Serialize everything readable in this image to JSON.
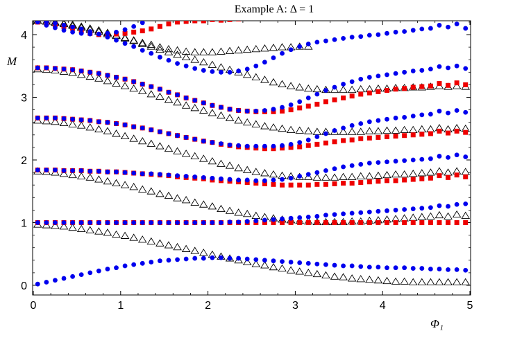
{
  "chart_data": {
    "type": "scatter",
    "title": "Example A: Δ = 1",
    "xlabel": "Φ₁",
    "ylabel": "M",
    "xlim": [
      0,
      5.05
    ],
    "ylim": [
      -0.18,
      4.22
    ],
    "xticks": [
      0,
      1,
      2,
      3,
      4,
      5
    ],
    "yticks": [
      0,
      1,
      2,
      3,
      4
    ],
    "grid": false,
    "legend": "none",
    "x": {
      "start": 0.05,
      "stop": 5.0,
      "step": 0.1
    },
    "series": [
      {
        "marker": "circle",
        "color": "#0000ee",
        "curves": [
          [
            0.02,
            0.05,
            0.08,
            0.11,
            0.14,
            0.17,
            0.2,
            0.23,
            0.26,
            0.28,
            0.31,
            0.33,
            0.35,
            0.37,
            0.39,
            0.4,
            0.41,
            0.42,
            0.43,
            0.43,
            0.44,
            0.44,
            0.43,
            0.43,
            0.42,
            0.41,
            0.4,
            0.39,
            0.38,
            0.37,
            0.36,
            0.35,
            0.34,
            0.33,
            0.32,
            0.31,
            0.31,
            0.3,
            0.29,
            0.29,
            0.28,
            0.28,
            0.28,
            0.27,
            0.27,
            0.26,
            0.26,
            0.25,
            0.25,
            0.24
          ],
          [
            1.0,
            1.0,
            1.0,
            1.0,
            1.0,
            1.0,
            1.0,
            1.0,
            1.0,
            1.0,
            1.0,
            1.0,
            1.0,
            1.0,
            1.0,
            1.0,
            1.0,
            1.0,
            1.0,
            1.0,
            1.0,
            1.0,
            1.01,
            1.01,
            1.02,
            1.03,
            1.04,
            1.05,
            1.06,
            1.07,
            1.08,
            1.09,
            1.1,
            1.12,
            1.13,
            1.14,
            1.15,
            1.16,
            1.17,
            1.18,
            1.19,
            1.2,
            1.21,
            1.22,
            1.23,
            1.24,
            1.27,
            1.26,
            1.29,
            1.3
          ],
          [
            1.84,
            1.84,
            1.84,
            1.83,
            1.83,
            1.83,
            1.82,
            1.82,
            1.81,
            1.81,
            1.8,
            1.79,
            1.78,
            1.78,
            1.77,
            1.76,
            1.75,
            1.74,
            1.73,
            1.72,
            1.71,
            1.7,
            1.69,
            1.68,
            1.68,
            1.67,
            1.67,
            1.68,
            1.69,
            1.71,
            1.74,
            1.77,
            1.8,
            1.83,
            1.86,
            1.89,
            1.91,
            1.93,
            1.95,
            1.96,
            1.97,
            1.98,
            1.99,
            2.0,
            2.01,
            2.02,
            2.06,
            2.04,
            2.08,
            2.05
          ],
          [
            2.67,
            2.67,
            2.67,
            2.66,
            2.65,
            2.64,
            2.63,
            2.61,
            2.6,
            2.58,
            2.56,
            2.53,
            2.51,
            2.48,
            2.45,
            2.42,
            2.39,
            2.36,
            2.33,
            2.3,
            2.28,
            2.26,
            2.24,
            2.23,
            2.22,
            2.22,
            2.22,
            2.22,
            2.23,
            2.25,
            2.28,
            2.32,
            2.37,
            2.42,
            2.47,
            2.51,
            2.55,
            2.58,
            2.61,
            2.63,
            2.65,
            2.67,
            2.68,
            2.7,
            2.72,
            2.73,
            2.78,
            2.75,
            2.79,
            2.76
          ],
          [
            3.47,
            3.47,
            3.46,
            3.45,
            3.44,
            3.42,
            3.4,
            3.38,
            3.35,
            3.32,
            3.29,
            3.25,
            3.21,
            3.17,
            3.13,
            3.08,
            3.04,
            2.99,
            2.95,
            2.91,
            2.87,
            2.84,
            2.81,
            2.79,
            2.78,
            2.78,
            2.79,
            2.81,
            2.84,
            2.88,
            2.93,
            2.99,
            3.05,
            3.11,
            3.16,
            3.21,
            3.25,
            3.29,
            3.32,
            3.34,
            3.36,
            3.38,
            3.4,
            3.42,
            3.43,
            3.45,
            3.49,
            3.47,
            3.5,
            3.46
          ],
          [
            4.22,
            4.2,
            4.18,
            4.15,
            4.12,
            4.09,
            4.05,
            4.01,
            3.96,
            3.91,
            3.86,
            3.81,
            3.75,
            3.7,
            3.64,
            3.59,
            3.54,
            3.5,
            3.46,
            3.43,
            3.41,
            3.4,
            3.4,
            3.42,
            3.45,
            3.5,
            3.56,
            3.63,
            3.7,
            3.76,
            3.81,
            3.85,
            3.88,
            3.9,
            3.92,
            3.94,
            3.96,
            3.97,
            3.99,
            4.0,
            4.02,
            4.04,
            4.05,
            4.07,
            4.09,
            4.1,
            4.15,
            4.12,
            4.17,
            4.1
          ],
          [
            4.2,
            4.15,
            4.11,
            4.07,
            4.04,
            4.02,
            4.01,
            4.01,
            4.02,
            4.04,
            4.08,
            4.13,
            4.19
          ]
        ]
      },
      {
        "marker": "square",
        "color": "#ee0000",
        "curves": [
          [
            1.0,
            1.0,
            1.0,
            1.0,
            1.0,
            1.0,
            1.0,
            1.0,
            1.0,
            1.0,
            1.0,
            1.0,
            1.0,
            1.0,
            1.0,
            1.0,
            1.0,
            1.0,
            1.0,
            1.0,
            1.0,
            1.0,
            1.0,
            1.0,
            1.0,
            1.0,
            1.0,
            1.0,
            1.0,
            1.0,
            1.0,
            1.0,
            1.0,
            1.0,
            1.0,
            1.0,
            1.0,
            1.0,
            1.0,
            1.0,
            1.0,
            1.0,
            1.0,
            1.0,
            1.0,
            1.0,
            1.0,
            1.0,
            1.0,
            1.0
          ],
          [
            1.84,
            1.84,
            1.84,
            1.83,
            1.83,
            1.83,
            1.82,
            1.82,
            1.81,
            1.81,
            1.8,
            1.79,
            1.78,
            1.77,
            1.76,
            1.75,
            1.73,
            1.72,
            1.71,
            1.7,
            1.68,
            1.67,
            1.66,
            1.65,
            1.64,
            1.63,
            1.62,
            1.61,
            1.6,
            1.6,
            1.6,
            1.6,
            1.61,
            1.61,
            1.62,
            1.63,
            1.63,
            1.64,
            1.65,
            1.66,
            1.67,
            1.67,
            1.68,
            1.69,
            1.7,
            1.71,
            1.75,
            1.72,
            1.76,
            1.73
          ],
          [
            2.67,
            2.67,
            2.67,
            2.66,
            2.65,
            2.64,
            2.63,
            2.61,
            2.6,
            2.58,
            2.56,
            2.53,
            2.51,
            2.48,
            2.45,
            2.42,
            2.39,
            2.36,
            2.33,
            2.3,
            2.28,
            2.25,
            2.23,
            2.21,
            2.2,
            2.19,
            2.18,
            2.18,
            2.19,
            2.2,
            2.21,
            2.23,
            2.25,
            2.27,
            2.29,
            2.31,
            2.32,
            2.34,
            2.35,
            2.36,
            2.37,
            2.38,
            2.39,
            2.4,
            2.41,
            2.42,
            2.46,
            2.43,
            2.46,
            2.44
          ],
          [
            3.47,
            3.47,
            3.46,
            3.45,
            3.44,
            3.42,
            3.4,
            3.38,
            3.35,
            3.32,
            3.29,
            3.25,
            3.21,
            3.17,
            3.13,
            3.08,
            3.04,
            2.99,
            2.95,
            2.91,
            2.87,
            2.84,
            2.81,
            2.79,
            2.78,
            2.77,
            2.77,
            2.77,
            2.78,
            2.8,
            2.83,
            2.86,
            2.89,
            2.93,
            2.96,
            2.99,
            3.02,
            3.05,
            3.07,
            3.09,
            3.11,
            3.13,
            3.14,
            3.16,
            3.17,
            3.18,
            3.22,
            3.19,
            3.23,
            3.2
          ],
          [
            4.2,
            4.18,
            4.16,
            4.13,
            4.1,
            4.06,
            4.02,
            4.0,
            4.0,
            4.01,
            4.02,
            4.04,
            4.06,
            4.09,
            4.13,
            4.17,
            4.2,
            4.21,
            4.22,
            4.22,
            4.24,
            4.23,
            4.24,
            4.25
          ]
        ]
      },
      {
        "marker": "triangle",
        "color": "#000000",
        "curves": [
          [
            0.97,
            0.96,
            0.95,
            0.94,
            0.92,
            0.9,
            0.88,
            0.86,
            0.84,
            0.81,
            0.79,
            0.76,
            0.73,
            0.7,
            0.67,
            0.64,
            0.61,
            0.58,
            0.55,
            0.52,
            0.49,
            0.46,
            0.43,
            0.4,
            0.37,
            0.34,
            0.32,
            0.29,
            0.27,
            0.24,
            0.22,
            0.2,
            0.18,
            0.16,
            0.14,
            0.13,
            0.11,
            0.1,
            0.09,
            0.08,
            0.07,
            0.06,
            0.06,
            0.05,
            0.05,
            0.05,
            0.05,
            0.05,
            0.05,
            0.05
          ],
          [
            1.82,
            1.81,
            1.8,
            1.78,
            1.76,
            1.74,
            1.72,
            1.69,
            1.66,
            1.63,
            1.6,
            1.57,
            1.53,
            1.5,
            1.46,
            1.43,
            1.39,
            1.36,
            1.32,
            1.29,
            1.26,
            1.22,
            1.19,
            1.16,
            1.14,
            1.11,
            1.09,
            1.07,
            1.05,
            1.04,
            1.03,
            1.02,
            1.01,
            1.01,
            1.01,
            1.01,
            1.02,
            1.02,
            1.03,
            1.04,
            1.05,
            1.06,
            1.07,
            1.08,
            1.09,
            1.1,
            1.12,
            1.1,
            1.13,
            1.11
          ],
          [
            2.63,
            2.62,
            2.61,
            2.59,
            2.57,
            2.55,
            2.52,
            2.49,
            2.46,
            2.42,
            2.38,
            2.34,
            2.3,
            2.26,
            2.22,
            2.18,
            2.14,
            2.1,
            2.06,
            2.02,
            1.98,
            1.94,
            1.91,
            1.87,
            1.84,
            1.81,
            1.79,
            1.77,
            1.75,
            1.74,
            1.73,
            1.73,
            1.72,
            1.72,
            1.72,
            1.73,
            1.73,
            1.74,
            1.74,
            1.75,
            1.76,
            1.77,
            1.77,
            1.78,
            1.79,
            1.8,
            1.82,
            1.8,
            1.82,
            1.81
          ],
          [
            3.45,
            3.44,
            3.43,
            3.41,
            3.39,
            3.36,
            3.33,
            3.3,
            3.26,
            3.22,
            3.18,
            3.14,
            3.1,
            3.05,
            3.01,
            2.96,
            2.92,
            2.87,
            2.83,
            2.79,
            2.75,
            2.71,
            2.67,
            2.63,
            2.6,
            2.57,
            2.54,
            2.52,
            2.5,
            2.48,
            2.47,
            2.46,
            2.45,
            2.45,
            2.45,
            2.45,
            2.45,
            2.45,
            2.46,
            2.46,
            2.47,
            2.47,
            2.48,
            2.48,
            2.49,
            2.49,
            2.51,
            2.49,
            2.51,
            2.5
          ],
          [
            4.22,
            4.21,
            4.2,
            4.18,
            4.16,
            4.13,
            4.1,
            4.07,
            4.03,
            3.99,
            3.95,
            3.9,
            3.85,
            3.81,
            3.76,
            3.72,
            3.68,
            3.64,
            3.6,
            3.56,
            3.52,
            3.48,
            3.44,
            3.4,
            3.36,
            3.32,
            3.28,
            3.24,
            3.21,
            3.18,
            3.16,
            3.14,
            3.13,
            3.12,
            3.12,
            3.12,
            3.12,
            3.13,
            3.13,
            3.14,
            3.14,
            3.15,
            3.15,
            3.16,
            3.16,
            3.17,
            3.18,
            3.17,
            3.18,
            3.17
          ],
          [
            4.22,
            4.21,
            4.19,
            4.17,
            4.14,
            4.11,
            4.08,
            4.05,
            4.01,
            3.98,
            3.94,
            3.91,
            3.87,
            3.84,
            3.8,
            3.77,
            3.75,
            3.73,
            3.72,
            3.72,
            3.72,
            3.73,
            3.74,
            3.75,
            3.76,
            3.77,
            3.78,
            3.79,
            3.8,
            3.8,
            3.81,
            3.81
          ]
        ]
      }
    ]
  }
}
